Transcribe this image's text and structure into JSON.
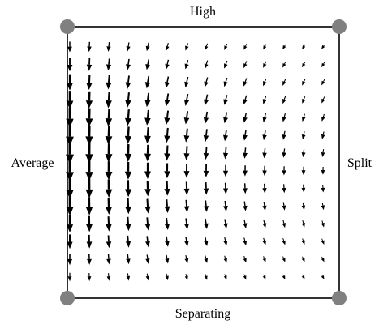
{
  "diagram": {
    "labels": {
      "top": "High",
      "bottom": "Separating",
      "left": "Average",
      "right": "Split"
    },
    "colors": {
      "frame": "#000000",
      "vertex": "#808080",
      "arrow": "#000000",
      "background": "#ffffff"
    },
    "vertices": [
      {
        "name": "top-left",
        "corner": "top-left"
      },
      {
        "name": "top-right",
        "corner": "top-right"
      },
      {
        "name": "bottom-left",
        "corner": "bottom-left"
      },
      {
        "name": "bottom-right",
        "corner": "bottom-right"
      }
    ],
    "vector_field": {
      "columns": 14,
      "rows": 14,
      "description_of_flow": "left edge flows strongly downward; top-right region flows toward upper-left; bottom-right region flows toward lower-right"
    }
  }
}
